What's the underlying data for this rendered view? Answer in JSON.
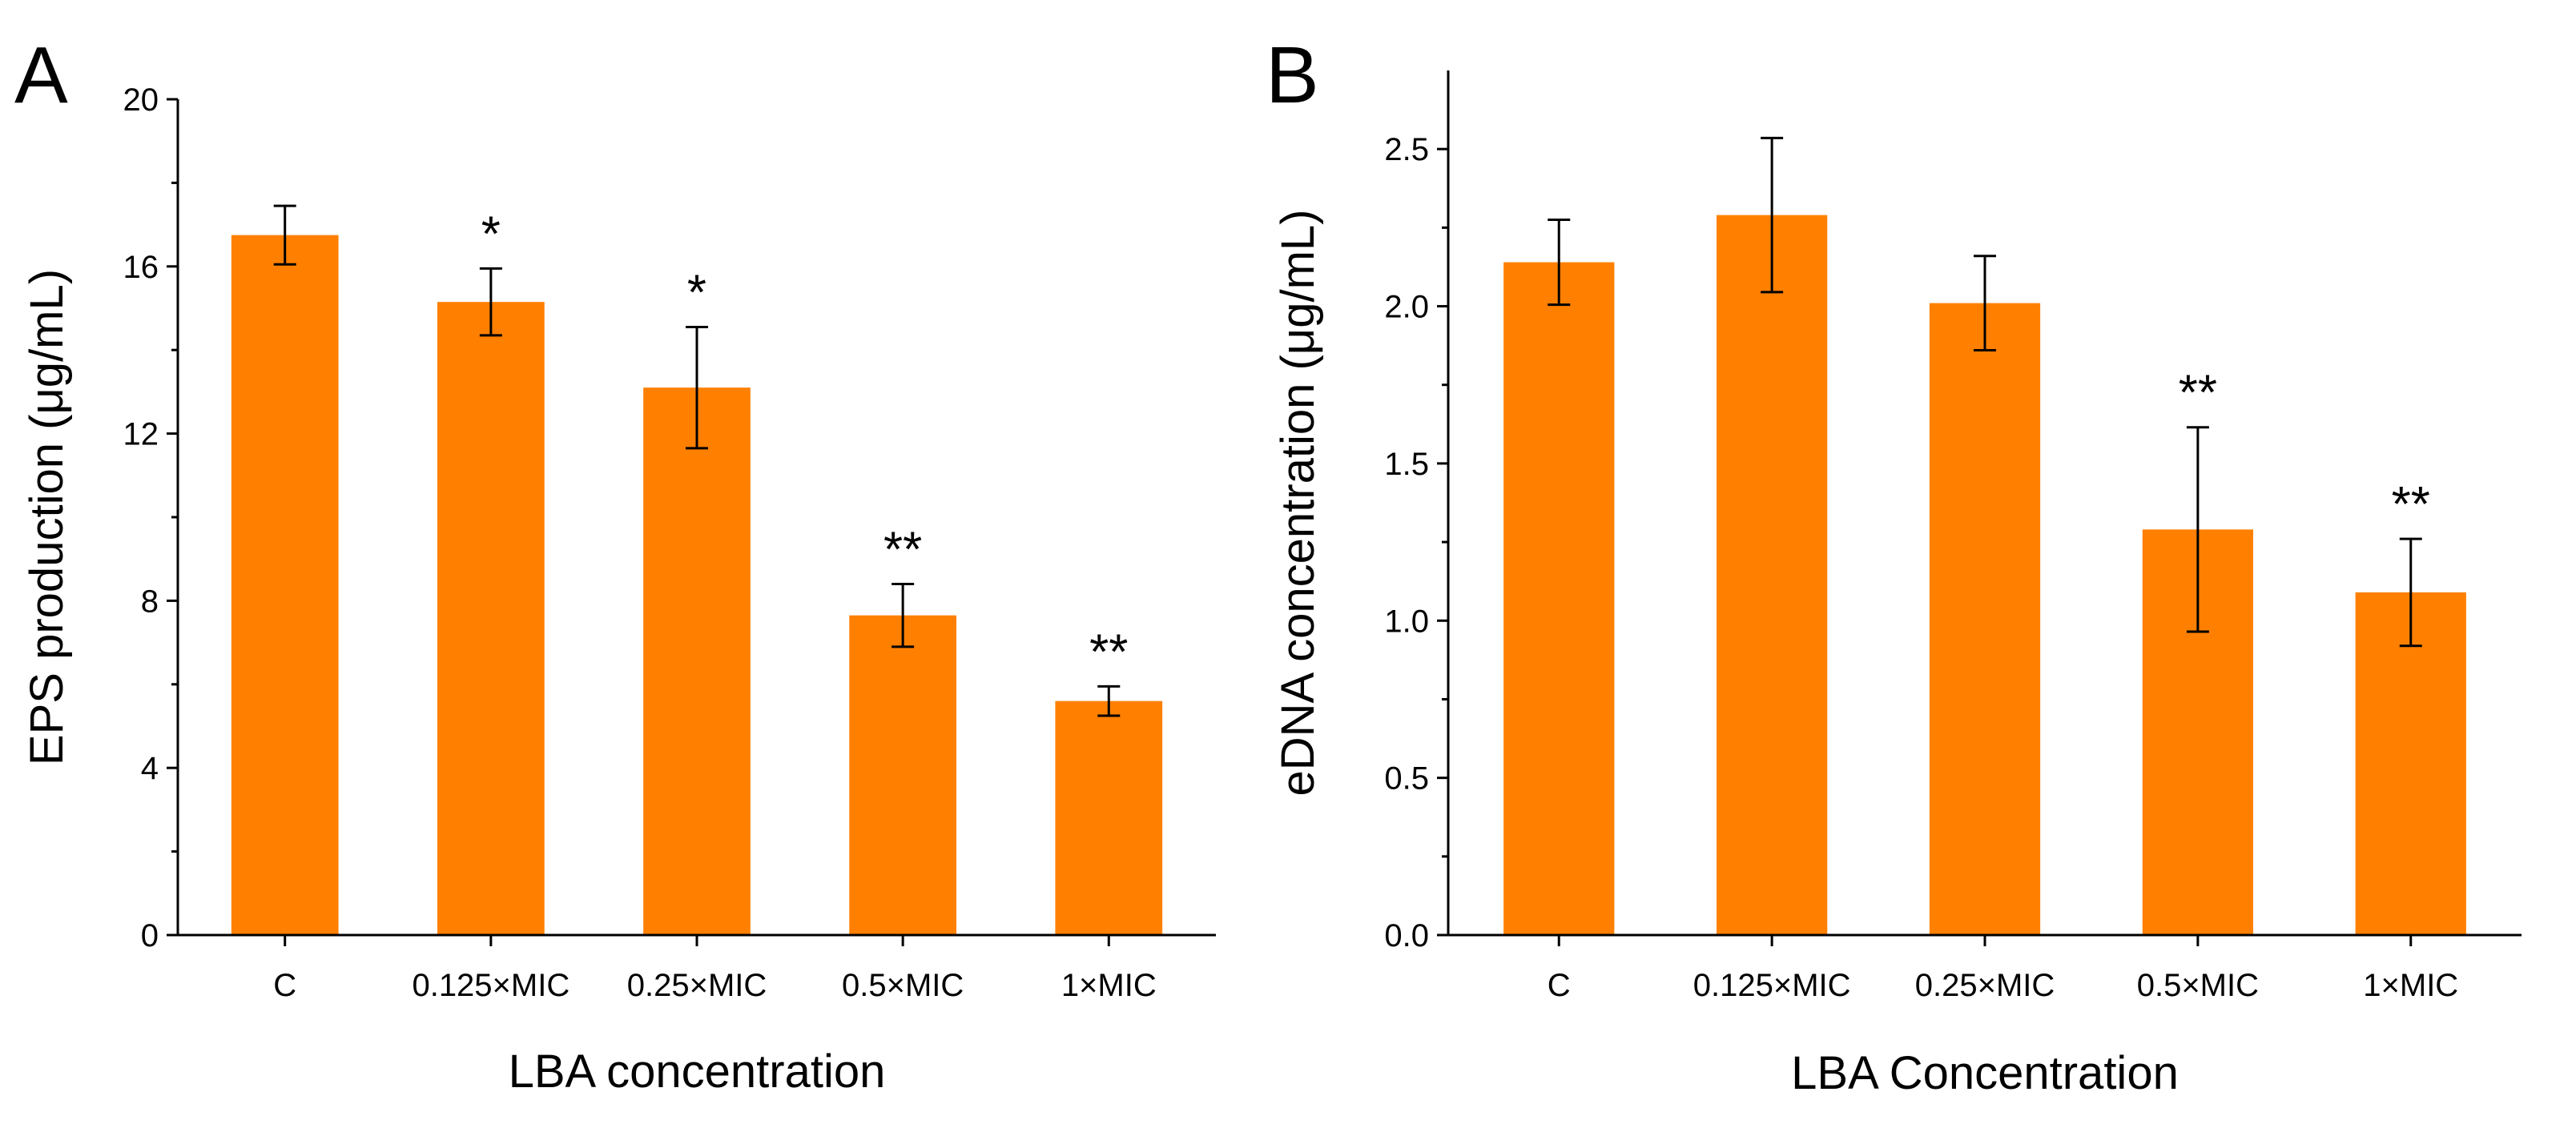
{
  "chart_data": [
    {
      "type": "bar",
      "panel_label": "A",
      "categories": [
        "C",
        "0.125×MIC",
        "0.25×MIC",
        "0.5×MIC",
        "1×MIC"
      ],
      "values": [
        16.75,
        15.15,
        13.1,
        7.65,
        5.6
      ],
      "errors": [
        0.7,
        0.8,
        1.45,
        0.75,
        0.35
      ],
      "significance": [
        "",
        "*",
        "*",
        "**",
        "**"
      ],
      "xlabel": "LBA concentration",
      "ylabel": "EPS production (μg/mL)",
      "ylim": [
        0,
        20
      ],
      "yticks": [
        0,
        4,
        8,
        12,
        16,
        20
      ],
      "ytick_labels": [
        "0",
        "4",
        "8",
        "12",
        "16",
        "20"
      ],
      "bar_color": "#FF8000",
      "grid": false
    },
    {
      "type": "bar",
      "panel_label": "B",
      "categories": [
        "C",
        "0.125×MIC",
        "0.25×MIC",
        "0.5×MIC",
        "1×MIC"
      ],
      "values": [
        2.14,
        2.29,
        2.01,
        1.29,
        1.09
      ],
      "errors": [
        0.135,
        0.245,
        0.15,
        0.325,
        0.17
      ],
      "significance": [
        "",
        "",
        "",
        "**",
        "**"
      ],
      "xlabel": "LBA Concentration",
      "ylabel": "eDNA concentration (μg/mL)",
      "ylim": [
        0,
        2.75
      ],
      "yticks": [
        0,
        0.5,
        1.0,
        1.5,
        2.0,
        2.5
      ],
      "ytick_labels": [
        "0.0",
        "0.5",
        "1.0",
        "1.5",
        "2.0",
        "2.5"
      ],
      "bar_color": "#FF8000",
      "grid": false
    }
  ]
}
